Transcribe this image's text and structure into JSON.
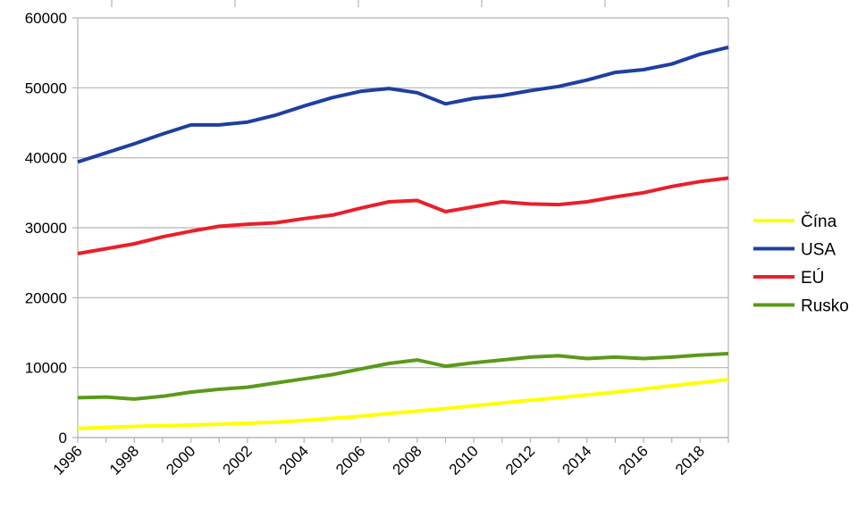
{
  "chart_data": {
    "type": "line",
    "title": "",
    "xlabel": "",
    "ylabel": "",
    "x": [
      1996,
      1997,
      1998,
      1999,
      2000,
      2001,
      2002,
      2003,
      2004,
      2005,
      2006,
      2007,
      2008,
      2009,
      2010,
      2011,
      2012,
      2013,
      2014,
      2015,
      2016,
      2017,
      2018,
      2019
    ],
    "x_tick_labels": [
      "1996",
      "1998",
      "2000",
      "2002",
      "2004",
      "2006",
      "2008",
      "2010",
      "2012",
      "2014",
      "2016",
      "2018"
    ],
    "y_tick_labels": [
      "0",
      "10000",
      "20000",
      "30000",
      "40000",
      "50000",
      "60000"
    ],
    "ylim": [
      0,
      60000
    ],
    "grid": true,
    "legend_position": "right",
    "series": [
      {
        "name": "Čína",
        "color": "#ffff00",
        "values": [
          1300,
          1450,
          1600,
          1700,
          1800,
          1900,
          2050,
          2200,
          2450,
          2750,
          3050,
          3450,
          3800,
          4150,
          4550,
          4950,
          5350,
          5700,
          6100,
          6500,
          6950,
          7400,
          7850,
          8300
        ]
      },
      {
        "name": "USA",
        "color": "#1f3fa0",
        "values": [
          39400,
          40700,
          42000,
          43400,
          44700,
          44700,
          45100,
          46100,
          47400,
          48600,
          49500,
          49900,
          49300,
          47700,
          48500,
          48900,
          49600,
          50200,
          51100,
          52200,
          52600,
          53400,
          54800,
          55800
        ]
      },
      {
        "name": "EÚ",
        "color": "#e8202a",
        "values": [
          26300,
          27000,
          27700,
          28700,
          29500,
          30200,
          30500,
          30700,
          31300,
          31800,
          32800,
          33700,
          33900,
          32300,
          33000,
          33700,
          33400,
          33300,
          33700,
          34400,
          35000,
          35900,
          36600,
          37100
        ]
      },
      {
        "name": "Rusko",
        "color": "#5a9a1a",
        "values": [
          5700,
          5800,
          5500,
          5900,
          6500,
          6900,
          7200,
          7800,
          8400,
          9000,
          9800,
          10600,
          11100,
          10200,
          10700,
          11100,
          11500,
          11700,
          11300,
          11500,
          11300,
          11500,
          11800,
          12000
        ]
      }
    ]
  }
}
